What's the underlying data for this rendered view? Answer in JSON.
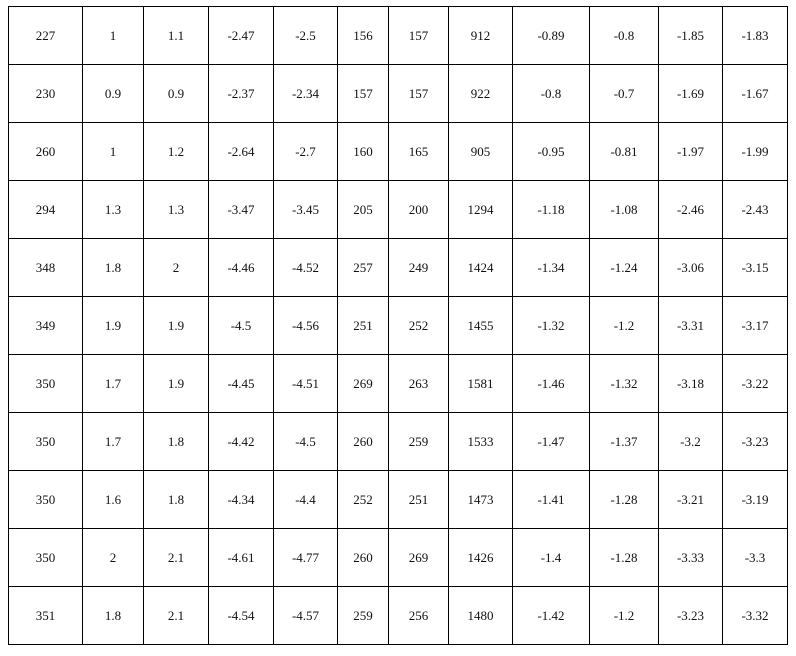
{
  "table": {
    "rows": [
      [
        "227",
        "1",
        "1.1",
        "-2.47",
        "-2.5",
        "156",
        "157",
        "912",
        "-0.89",
        "-0.8",
        "-1.85",
        "-1.83"
      ],
      [
        "230",
        "0.9",
        "0.9",
        "-2.37",
        "-2.34",
        "157",
        "157",
        "922",
        "-0.8",
        "-0.7",
        "-1.69",
        "-1.67"
      ],
      [
        "260",
        "1",
        "1.2",
        "-2.64",
        "-2.7",
        "160",
        "165",
        "905",
        "-0.95",
        "-0.81",
        "-1.97",
        "-1.99"
      ],
      [
        "294",
        "1.3",
        "1.3",
        "-3.47",
        "-3.45",
        "205",
        "200",
        "1294",
        "-1.18",
        "-1.08",
        "-2.46",
        "-2.43"
      ],
      [
        "348",
        "1.8",
        "2",
        "-4.46",
        "-4.52",
        "257",
        "249",
        "1424",
        "-1.34",
        "-1.24",
        "-3.06",
        "-3.15"
      ],
      [
        "349",
        "1.9",
        "1.9",
        "-4.5",
        "-4.56",
        "251",
        "252",
        "1455",
        "-1.32",
        "-1.2",
        "-3.31",
        "-3.17"
      ],
      [
        "350",
        "1.7",
        "1.9",
        "-4.45",
        "-4.51",
        "269",
        "263",
        "1581",
        "-1.46",
        "-1.32",
        "-3.18",
        "-3.22"
      ],
      [
        "350",
        "1.7",
        "1.8",
        "-4.42",
        "-4.5",
        "260",
        "259",
        "1533",
        "-1.47",
        "-1.37",
        "-3.2",
        "-3.23"
      ],
      [
        "350",
        "1.6",
        "1.8",
        "-4.34",
        "-4.4",
        "252",
        "251",
        "1473",
        "-1.41",
        "-1.28",
        "-3.21",
        "-3.19"
      ],
      [
        "350",
        "2",
        "2.1",
        "-4.61",
        "-4.77",
        "260",
        "269",
        "1426",
        "-1.4",
        "-1.28",
        "-3.33",
        "-3.3"
      ],
      [
        "351",
        "1.8",
        "2.1",
        "-4.54",
        "-4.57",
        "259",
        "256",
        "1480",
        "-1.42",
        "-1.2",
        "-3.23",
        "-3.32"
      ]
    ]
  }
}
